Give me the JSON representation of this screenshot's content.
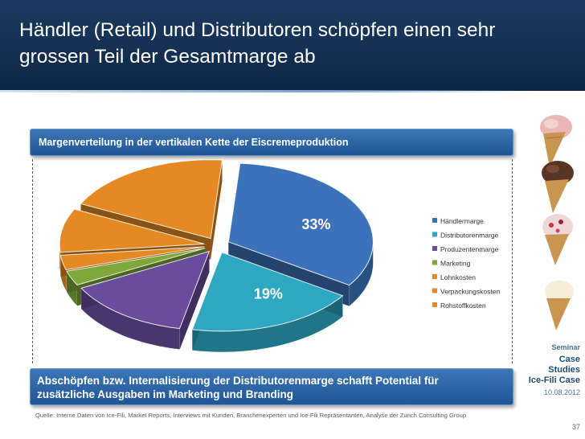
{
  "slide": {
    "title": "Händler (Retail) und Distributoren schöpfen einen sehr\ngrossen Teil der Gesamtmarge ab",
    "chart_heading": "Margenverteilung in der vertikalen Kette der Eiscremeproduktion",
    "conclusion": "Abschöpfen bzw. Internalisierung der Distributorenmarge schafft Potential für\nzusätzliche Ausgaben im Marketing und Branding",
    "source": "Quelle: Interne Daten von Ice-Fili, Market Reports, Interviews mit Kunden, Branchenexperten und Ice-Fili Repräsentanten, Analyse der Zurich Consulting Group"
  },
  "sidebar": {
    "seminar": "Seminar",
    "case_title": "Case\nStudies\nIce-Fili Case",
    "date": "10.08.2012",
    "page": "37"
  },
  "colors": {
    "header": "#17345a",
    "panel": "#2b65a8",
    "slices": [
      "#3b72b9",
      "#2ea7c2",
      "#6a4c9c",
      "#7ea83a",
      "#e58a22",
      "#e58a22",
      "#e58a22"
    ]
  },
  "chart_data": {
    "type": "pie",
    "title": "Margenverteilung in der vertikalen Kette der Eiscremeproduktion",
    "exploded": true,
    "three_d": true,
    "legend_position": "right",
    "labels": [
      "Händlermarge",
      "Distributorenmarge",
      "Produzentenmarge",
      "Marketing",
      "Lohnkosten",
      "Verpackungskosten",
      "Rohstoffkosten"
    ],
    "values": [
      33,
      19,
      14,
      3,
      3,
      9,
      19
    ],
    "data_labels": [
      "33%",
      "19%",
      "",
      "",
      "",
      "",
      ""
    ]
  }
}
